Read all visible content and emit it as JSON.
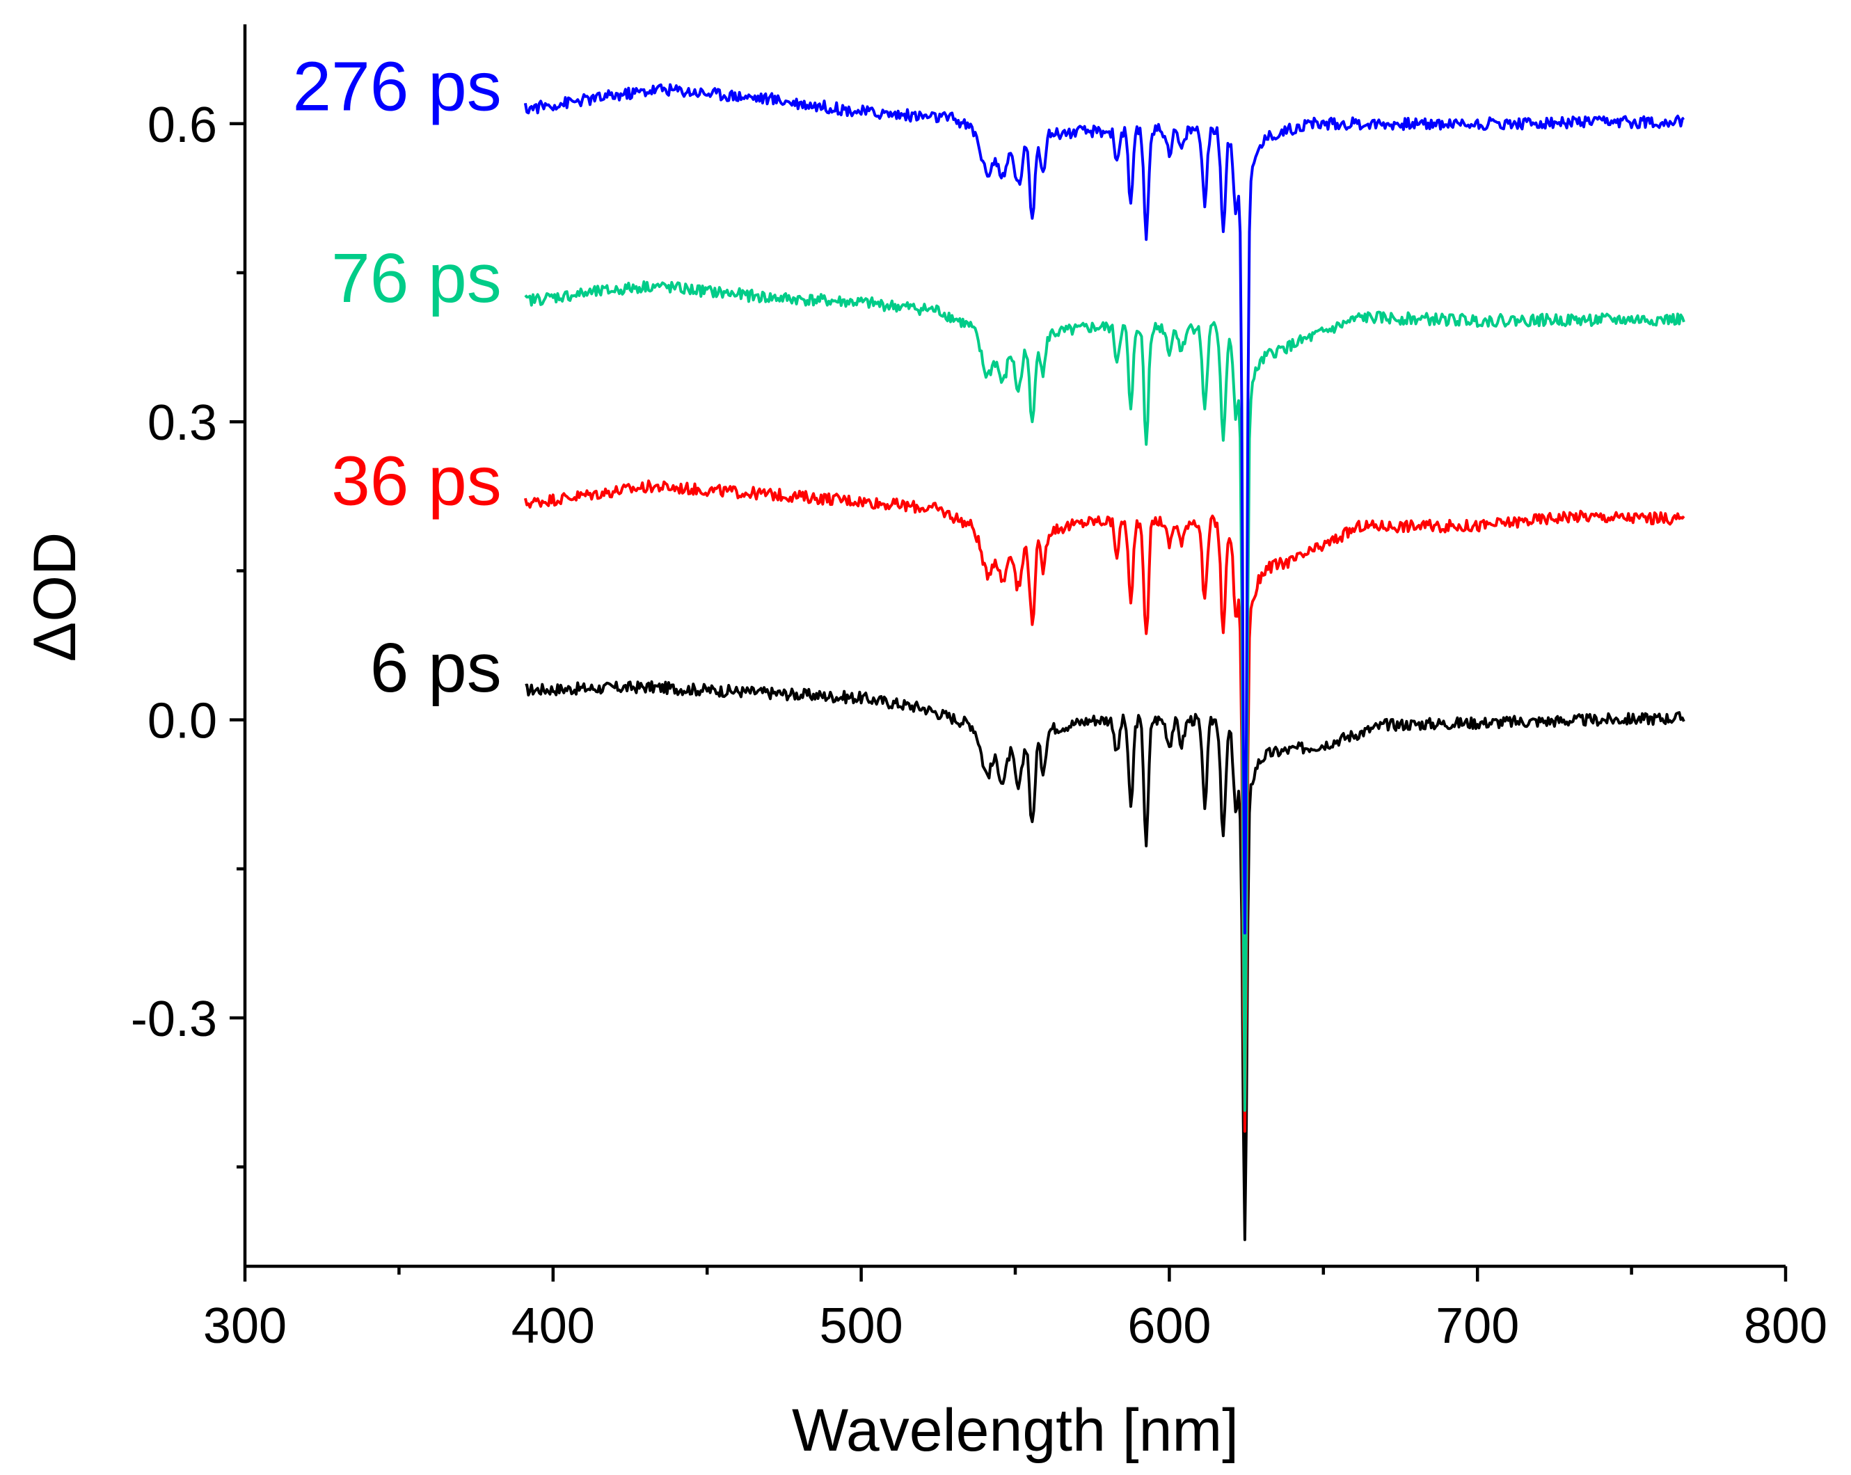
{
  "chart_data": {
    "type": "line",
    "title": "",
    "xlabel": "Wavelength [nm]",
    "ylabel": "ΔOD",
    "xlim": [
      300,
      800
    ],
    "ylim": [
      -0.55,
      0.7
    ],
    "x_ticks": [
      300,
      400,
      500,
      600,
      700,
      800
    ],
    "x_tick_labels": [
      "300",
      "400",
      "500",
      "600",
      "700",
      "800"
    ],
    "x_minor_ticks": [
      350,
      450,
      550,
      650,
      750
    ],
    "y_ticks": [
      -0.3,
      0.0,
      0.3,
      0.6
    ],
    "y_tick_labels": [
      "-0.3",
      "0.0",
      "0.3",
      "0.6"
    ],
    "y_minor_ticks": [
      -0.45,
      -0.15,
      0.15,
      0.45
    ],
    "grid": false,
    "dips": [
      {
        "x": 541,
        "depth": 0.035,
        "width": 2.5
      },
      {
        "x": 546,
        "depth": 0.045,
        "width": 2.0
      },
      {
        "x": 551,
        "depth": 0.055,
        "width": 1.8
      },
      {
        "x": 555.5,
        "depth": 0.095,
        "width": 1.2
      },
      {
        "x": 559,
        "depth": 0.04,
        "width": 1.2
      },
      {
        "x": 583,
        "depth": 0.035,
        "width": 1.0
      },
      {
        "x": 587.5,
        "depth": 0.09,
        "width": 1.0
      },
      {
        "x": 592.5,
        "depth": 0.125,
        "width": 1.0
      },
      {
        "x": 600,
        "depth": 0.025,
        "width": 1.2
      },
      {
        "x": 604,
        "depth": 0.025,
        "width": 1.2
      },
      {
        "x": 611.5,
        "depth": 0.085,
        "width": 1.1
      },
      {
        "x": 617.5,
        "depth": 0.115,
        "width": 1.1
      },
      {
        "x": 621.5,
        "depth": 0.06,
        "width": 1.0
      }
    ],
    "series": [
      {
        "name": "6 ps",
        "label": "6 ps",
        "color": "#000000",
        "offset": 0.0,
        "dip_scale": 1.0,
        "main_dip": {
          "x": 624.5,
          "depth": 0.45
        },
        "baseline": [
          [
            391,
            0.03
          ],
          [
            430,
            0.033
          ],
          [
            470,
            0.027
          ],
          [
            500,
            0.022
          ],
          [
            520,
            0.012
          ],
          [
            536,
            -0.005
          ],
          [
            540,
            -0.02
          ],
          [
            560,
            -0.01
          ],
          [
            575,
            0.0
          ],
          [
            620,
            0.0
          ],
          [
            630,
            -0.035
          ],
          [
            650,
            -0.025
          ],
          [
            670,
            -0.005
          ],
          [
            700,
            -0.003
          ],
          [
            767,
            0.002
          ]
        ]
      },
      {
        "name": "36 ps",
        "label": "36 ps",
        "color": "#ff0000",
        "offset": 0.2,
        "dip_scale": 0.95,
        "main_dip": {
          "x": 624.5,
          "depth": 0.53
        },
        "baseline": [
          [
            391,
            0.018
          ],
          [
            432,
            0.035
          ],
          [
            470,
            0.027
          ],
          [
            500,
            0.02
          ],
          [
            525,
            0.012
          ],
          [
            536,
            -0.005
          ],
          [
            540,
            -0.02
          ],
          [
            560,
            -0.01
          ],
          [
            575,
            0.0
          ],
          [
            620,
            0.0
          ],
          [
            628,
            -0.05
          ],
          [
            640,
            -0.04
          ],
          [
            650,
            -0.025
          ],
          [
            662,
            -0.005
          ],
          [
            700,
            -0.005
          ],
          [
            730,
            0.005
          ],
          [
            767,
            0.002
          ]
        ]
      },
      {
        "name": "76 ps",
        "label": "76 ps",
        "color": "#00cc88",
        "offset": 0.4,
        "dip_scale": 0.95,
        "main_dip": {
          "x": 624.5,
          "depth": 0.72
        },
        "baseline": [
          [
            391,
            0.022
          ],
          [
            432,
            0.037
          ],
          [
            470,
            0.025
          ],
          [
            500,
            0.02
          ],
          [
            525,
            0.012
          ],
          [
            536,
            -0.005
          ],
          [
            540,
            -0.02
          ],
          [
            560,
            -0.012
          ],
          [
            575,
            -0.005
          ],
          [
            620,
            -0.005
          ],
          [
            630,
            -0.035
          ],
          [
            650,
            -0.01
          ],
          [
            662,
            0.005
          ],
          [
            700,
            0.002
          ],
          [
            767,
            0.003
          ]
        ]
      },
      {
        "name": "276 ps",
        "label": "276 ps",
        "color": "#0000ff",
        "offset": 0.6,
        "dip_scale": 0.85,
        "main_dip": {
          "x": 624.5,
          "depth": 0.74
        },
        "baseline": [
          [
            391,
            0.015
          ],
          [
            435,
            0.035
          ],
          [
            470,
            0.025
          ],
          [
            500,
            0.012
          ],
          [
            530,
            0.005
          ],
          [
            536,
            -0.005
          ],
          [
            540,
            -0.02
          ],
          [
            560,
            -0.01
          ],
          [
            575,
            -0.008
          ],
          [
            620,
            -0.005
          ],
          [
            630,
            -0.015
          ],
          [
            645,
            0.0
          ],
          [
            700,
            0.0
          ],
          [
            767,
            0.002
          ]
        ]
      }
    ]
  }
}
